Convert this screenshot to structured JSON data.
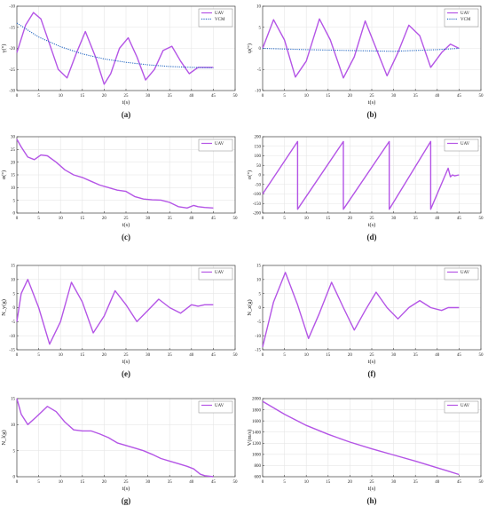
{
  "figure": {
    "line_color": "#b455e6",
    "line_color_secondary": "#2b6cc4",
    "grid_color": "#e6e6e6",
    "axis_color": "#444444"
  },
  "chart_data": [
    {
      "id": "a",
      "type": "line",
      "caption": "(a)",
      "xlabel": "t(s)",
      "ylabel": "γ(°)",
      "xlim": [
        0,
        50
      ],
      "ylim": [
        -30,
        -10
      ],
      "xticks": [
        0,
        5,
        10,
        15,
        20,
        25,
        30,
        35,
        40,
        45,
        50
      ],
      "yticks": [
        -30,
        -25,
        -20,
        -15,
        -10
      ],
      "legend": [
        "UAV",
        "VCM"
      ],
      "legend_position": "top-right",
      "series": [
        {
          "name": "UAV",
          "x": [
            0,
            2,
            3.8,
            5.5,
            7.5,
            9.5,
            11.5,
            13.5,
            15.7,
            18,
            20,
            21.5,
            23.5,
            25.5,
            27.5,
            29.5,
            31.5,
            33.5,
            35.5,
            37.5,
            39.5,
            41.5,
            43.5,
            45
          ],
          "y": [
            -21,
            -14.5,
            -11.5,
            -13,
            -19,
            -25,
            -27,
            -21.5,
            -16,
            -22,
            -28.5,
            -26,
            -20,
            -17.5,
            -22,
            -27.5,
            -25,
            -20.5,
            -19.5,
            -23,
            -26,
            -24.5,
            -24.5,
            -24.5
          ]
        },
        {
          "name": "VCM",
          "x": [
            0,
            5,
            10,
            15,
            20,
            25,
            30,
            35,
            40,
            45
          ],
          "y": [
            -14,
            -17.3,
            -19.6,
            -21.3,
            -22.5,
            -23.3,
            -23.9,
            -24.3,
            -24.5,
            -24.6
          ]
        }
      ]
    },
    {
      "id": "b",
      "type": "line",
      "caption": "(b)",
      "xlabel": "t(s)",
      "ylabel": "ψ(°)",
      "xlim": [
        0,
        50
      ],
      "ylim": [
        -10,
        10
      ],
      "xticks": [
        0,
        5,
        10,
        15,
        20,
        25,
        30,
        35,
        40,
        45,
        50
      ],
      "yticks": [
        -10,
        -5,
        0,
        5,
        10
      ],
      "legend": [
        "UAV",
        "VCM"
      ],
      "legend_position": "top-right",
      "series": [
        {
          "name": "UAV",
          "x": [
            0,
            2.5,
            5,
            7.5,
            10,
            13,
            15.5,
            18.5,
            21,
            23.5,
            26,
            28.5,
            31,
            33.5,
            36,
            38.5,
            41,
            43,
            45
          ],
          "y": [
            0,
            6.8,
            2,
            -6.8,
            -3,
            7,
            2,
            -7,
            -2,
            6.5,
            0,
            -6.5,
            -1,
            5.5,
            3,
            -4.5,
            -1,
            1,
            0
          ]
        },
        {
          "name": "VCM",
          "x": [
            0,
            10,
            20,
            30,
            40,
            45
          ],
          "y": [
            0,
            -0.3,
            -0.5,
            -0.7,
            -0.3,
            0
          ]
        }
      ]
    },
    {
      "id": "c",
      "type": "line",
      "caption": "(c)",
      "xlabel": "t(s)",
      "ylabel": "α(°)",
      "xlim": [
        0,
        50
      ],
      "ylim": [
        0,
        30
      ],
      "xticks": [
        0,
        5,
        10,
        15,
        20,
        25,
        30,
        35,
        40,
        45,
        50
      ],
      "yticks": [
        0,
        5,
        10,
        15,
        20,
        25,
        30
      ],
      "legend": [
        "UAV"
      ],
      "legend_position": "top-right",
      "series": [
        {
          "name": "UAV",
          "x": [
            0,
            1,
            2.5,
            4,
            5.5,
            7,
            9,
            11,
            13,
            15,
            17,
            19,
            21,
            23,
            25,
            27,
            29,
            31,
            33,
            35,
            37,
            39,
            40.5,
            41.5,
            43,
            45
          ],
          "y": [
            29,
            26,
            22,
            21,
            22.8,
            22.5,
            20,
            17,
            15,
            14,
            12.5,
            11,
            10,
            9,
            8.5,
            6.5,
            5.5,
            5.2,
            5.1,
            4.2,
            2.5,
            2,
            3,
            2.5,
            2.2,
            2
          ]
        }
      ]
    },
    {
      "id": "d",
      "type": "line",
      "caption": "(d)",
      "xlabel": "t(s)",
      "ylabel": "σ(°)",
      "xlim": [
        0,
        50
      ],
      "ylim": [
        -200,
        200
      ],
      "xticks": [
        0,
        5,
        10,
        15,
        20,
        25,
        30,
        35,
        40,
        45,
        50
      ],
      "yticks": [
        -200,
        -150,
        -100,
        -50,
        0,
        50,
        100,
        150,
        200
      ],
      "legend": [
        "UAV"
      ],
      "legend_position": "top-right",
      "series": [
        {
          "name": "UAV",
          "x": [
            0,
            8,
            8,
            18.5,
            18.5,
            29,
            29,
            38.5,
            38.5,
            42.5,
            43,
            43.5,
            44,
            45
          ],
          "y": [
            -100,
            175,
            -180,
            175,
            -180,
            175,
            -180,
            175,
            -180,
            35,
            -10,
            0,
            -5,
            0
          ]
        }
      ]
    },
    {
      "id": "e",
      "type": "line",
      "caption": "(e)",
      "xlabel": "t(s)",
      "ylabel": "N_y(g)",
      "xlim": [
        0,
        50
      ],
      "ylim": [
        -15,
        15
      ],
      "xticks": [
        0,
        5,
        10,
        15,
        20,
        25,
        30,
        35,
        40,
        45,
        50
      ],
      "yticks": [
        -15,
        -10,
        -5,
        0,
        5,
        10,
        15
      ],
      "legend": [
        "UAV"
      ],
      "legend_position": "top-right",
      "series": [
        {
          "name": "UAV",
          "x": [
            0,
            1,
            2.5,
            5,
            7.5,
            10,
            12.5,
            15,
            17.5,
            20,
            22.5,
            25,
            27.5,
            30,
            32.5,
            35,
            37.5,
            40,
            41.5,
            43,
            45
          ],
          "y": [
            -5,
            5,
            10,
            0,
            -13,
            -5,
            9,
            2,
            -9,
            -3,
            6,
            1,
            -5,
            -1,
            3,
            0,
            -2,
            1,
            0.5,
            1,
            1
          ]
        }
      ]
    },
    {
      "id": "f",
      "type": "line",
      "caption": "(f)",
      "xlabel": "t(s)",
      "ylabel": "N_z(g)",
      "xlim": [
        0,
        50
      ],
      "ylim": [
        -15,
        15
      ],
      "xticks": [
        0,
        5,
        10,
        15,
        20,
        25,
        30,
        35,
        40,
        45,
        50
      ],
      "yticks": [
        -15,
        -10,
        -5,
        0,
        5,
        10,
        15
      ],
      "legend": [
        "UAV"
      ],
      "legend_position": "top-right",
      "series": [
        {
          "name": "UAV",
          "x": [
            0,
            2.5,
            5.2,
            8,
            10.5,
            13,
            15.8,
            18.5,
            21,
            23.5,
            26,
            28.5,
            31,
            33.5,
            36,
            38.5,
            41,
            42.5,
            43,
            45
          ],
          "y": [
            -14,
            2,
            12.5,
            1,
            -11,
            -2,
            9,
            0,
            -8,
            -1,
            5.5,
            0,
            -4,
            0,
            2.5,
            0,
            -1,
            0,
            0,
            0
          ]
        }
      ]
    },
    {
      "id": "g",
      "type": "line",
      "caption": "(g)",
      "xlabel": "t(s)",
      "ylabel": "N_l(g)",
      "xlim": [
        0,
        50
      ],
      "ylim": [
        0,
        15
      ],
      "xticks": [
        0,
        5,
        10,
        15,
        20,
        25,
        30,
        35,
        40,
        45,
        50
      ],
      "yticks": [
        0,
        5,
        10,
        15
      ],
      "legend": [
        "UAV"
      ],
      "legend_position": "top-right",
      "series": [
        {
          "name": "UAV",
          "x": [
            0,
            1,
            2.5,
            4.5,
            7,
            9,
            11,
            13,
            15,
            17,
            19,
            21,
            23,
            25,
            27,
            29,
            31,
            33,
            35,
            37,
            39,
            40.5,
            42,
            43,
            45
          ],
          "y": [
            15,
            12,
            10,
            11.5,
            13.5,
            12.5,
            10.5,
            9,
            8.8,
            8.8,
            8.2,
            7.5,
            6.5,
            6,
            5.5,
            5,
            4.3,
            3.5,
            3,
            2.5,
            2,
            1.5,
            0.5,
            0.2,
            0
          ]
        }
      ]
    },
    {
      "id": "h",
      "type": "line",
      "caption": "(h)",
      "xlabel": "t(s)",
      "ylabel": "V(m/s)",
      "xlim": [
        0,
        50
      ],
      "ylim": [
        600,
        2000
      ],
      "xticks": [
        0,
        5,
        10,
        15,
        20,
        25,
        30,
        35,
        40,
        45,
        50
      ],
      "yticks": [
        600,
        800,
        1000,
        1200,
        1400,
        1600,
        1800,
        2000
      ],
      "legend": [
        "UAV"
      ],
      "legend_position": "top-right",
      "series": [
        {
          "name": "UAV",
          "x": [
            0,
            5,
            10,
            15,
            20,
            25,
            30,
            35,
            40,
            45
          ],
          "y": [
            1950,
            1720,
            1520,
            1360,
            1220,
            1100,
            990,
            880,
            760,
            640
          ]
        }
      ]
    }
  ]
}
